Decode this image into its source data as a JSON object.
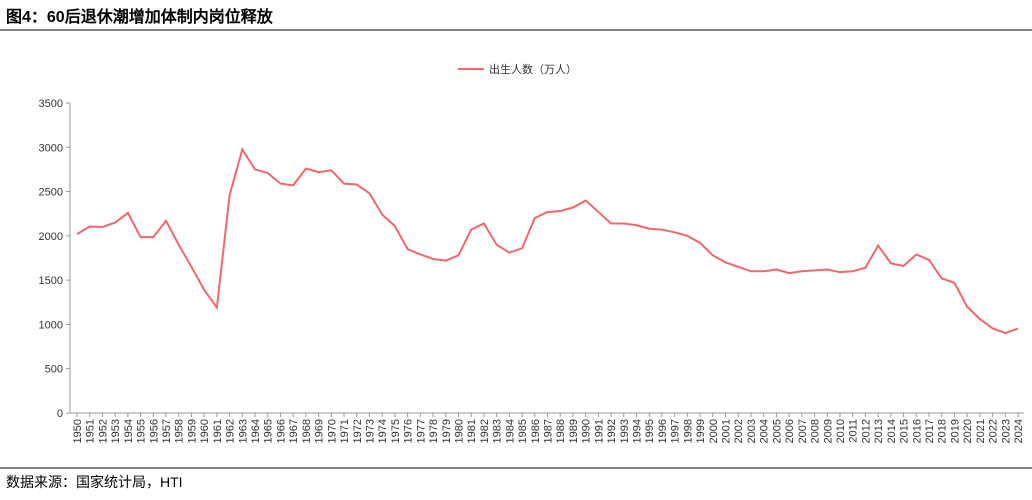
{
  "figure_title": "图4：60后退休潮增加体制内岗位释放",
  "source": "数据来源：国家统计局，HTI",
  "chart_data": {
    "type": "line",
    "categories": [
      "1950",
      "1951",
      "1952",
      "1953",
      "1954",
      "1955",
      "1956",
      "1957",
      "1958",
      "1959",
      "1960",
      "1961",
      "1962",
      "1963",
      "1964",
      "1965",
      "1966",
      "1967",
      "1968",
      "1969",
      "1970",
      "1971",
      "1972",
      "1973",
      "1974",
      "1975",
      "1976",
      "1977",
      "1978",
      "1979",
      "1980",
      "1981",
      "1982",
      "1983",
      "1984",
      "1985",
      "1986",
      "1987",
      "1988",
      "1989",
      "1990",
      "1991",
      "1992",
      "1993",
      "1994",
      "1995",
      "1996",
      "1997",
      "1998",
      "1999",
      "2000",
      "2001",
      "2002",
      "2003",
      "2004",
      "2005",
      "2006",
      "2007",
      "2008",
      "2009",
      "2010",
      "2011",
      "2012",
      "2013",
      "2014",
      "2015",
      "2016",
      "2017",
      "2018",
      "2019",
      "2020",
      "2021",
      "2022",
      "2023",
      "2024"
    ],
    "series": [
      {
        "name": "出生人数（万人）",
        "color": "#f0686c",
        "values": [
          2020,
          2105,
          2100,
          2150,
          2260,
          1985,
          1985,
          2170,
          1900,
          1650,
          1390,
          1190,
          2460,
          2975,
          2750,
          2710,
          2590,
          2570,
          2760,
          2720,
          2740,
          2590,
          2580,
          2480,
          2240,
          2110,
          1850,
          1790,
          1740,
          1720,
          1780,
          2070,
          2140,
          1900,
          1810,
          1860,
          2200,
          2270,
          2280,
          2320,
          2400,
          2270,
          2140,
          2140,
          2120,
          2080,
          2070,
          2040,
          2000,
          1920,
          1780,
          1700,
          1650,
          1600,
          1600,
          1620,
          1580,
          1600,
          1610,
          1620,
          1590,
          1600,
          1640,
          1890,
          1690,
          1660,
          1790,
          1730,
          1520,
          1470,
          1200,
          1060,
          956,
          902,
          954
        ]
      }
    ],
    "ylim": [
      0,
      3500
    ],
    "yticks": [
      0,
      500,
      1000,
      1500,
      2000,
      2500,
      3000,
      3500
    ],
    "legend": "top"
  }
}
